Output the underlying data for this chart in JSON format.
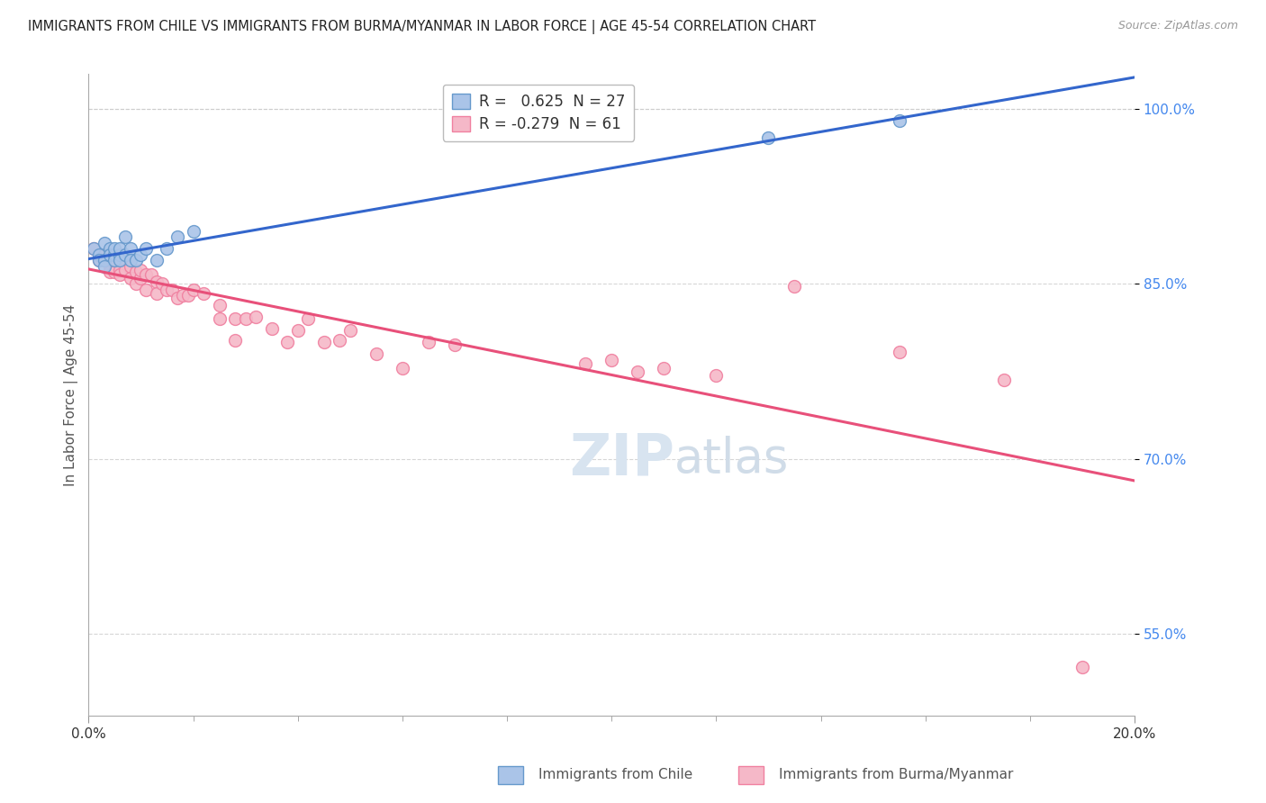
{
  "title": "IMMIGRANTS FROM CHILE VS IMMIGRANTS FROM BURMA/MYANMAR IN LABOR FORCE | AGE 45-54 CORRELATION CHART",
  "source": "Source: ZipAtlas.com",
  "ylabel": "In Labor Force | Age 45-54",
  "xlim": [
    0.0,
    0.2
  ],
  "ylim": [
    0.48,
    1.03
  ],
  "yticks": [
    0.55,
    0.7,
    0.85,
    1.0
  ],
  "ytick_labels": [
    "55.0%",
    "70.0%",
    "85.0%",
    "100.0%"
  ],
  "legend_chile_r": " 0.625",
  "legend_chile_n": "27",
  "legend_burma_r": "-0.279",
  "legend_burma_n": "61",
  "chile_color": "#aac4e8",
  "burma_color": "#f5b8c8",
  "chile_edge_color": "#6699cc",
  "burma_edge_color": "#f080a0",
  "chile_line_color": "#3366cc",
  "burma_line_color": "#e8507a",
  "background_color": "#ffffff",
  "grid_color": "#cccccc",
  "chile_points_x": [
    0.001,
    0.002,
    0.002,
    0.003,
    0.003,
    0.003,
    0.004,
    0.004,
    0.005,
    0.005,
    0.005,
    0.006,
    0.006,
    0.006,
    0.007,
    0.007,
    0.008,
    0.008,
    0.009,
    0.01,
    0.011,
    0.013,
    0.015,
    0.017,
    0.02,
    0.13,
    0.155
  ],
  "chile_points_y": [
    0.88,
    0.875,
    0.87,
    0.885,
    0.87,
    0.865,
    0.88,
    0.875,
    0.875,
    0.87,
    0.88,
    0.875,
    0.87,
    0.88,
    0.89,
    0.875,
    0.88,
    0.87,
    0.87,
    0.875,
    0.88,
    0.87,
    0.88,
    0.89,
    0.895,
    0.975,
    0.99
  ],
  "burma_points_x": [
    0.001,
    0.002,
    0.002,
    0.003,
    0.003,
    0.004,
    0.004,
    0.004,
    0.005,
    0.005,
    0.005,
    0.006,
    0.006,
    0.006,
    0.007,
    0.007,
    0.008,
    0.008,
    0.009,
    0.009,
    0.01,
    0.01,
    0.011,
    0.011,
    0.012,
    0.013,
    0.013,
    0.014,
    0.015,
    0.016,
    0.017,
    0.018,
    0.019,
    0.02,
    0.022,
    0.025,
    0.025,
    0.028,
    0.028,
    0.03,
    0.032,
    0.035,
    0.038,
    0.04,
    0.042,
    0.045,
    0.048,
    0.05,
    0.055,
    0.06,
    0.065,
    0.07,
    0.095,
    0.1,
    0.105,
    0.11,
    0.12,
    0.135,
    0.155,
    0.175,
    0.19
  ],
  "burma_points_y": [
    0.88,
    0.875,
    0.87,
    0.875,
    0.87,
    0.875,
    0.865,
    0.86,
    0.875,
    0.87,
    0.86,
    0.875,
    0.862,
    0.858,
    0.87,
    0.862,
    0.865,
    0.855,
    0.86,
    0.85,
    0.855,
    0.862,
    0.858,
    0.845,
    0.858,
    0.852,
    0.842,
    0.85,
    0.845,
    0.845,
    0.838,
    0.84,
    0.84,
    0.845,
    0.842,
    0.82,
    0.832,
    0.82,
    0.802,
    0.82,
    0.822,
    0.812,
    0.8,
    0.81,
    0.82,
    0.8,
    0.802,
    0.81,
    0.79,
    0.778,
    0.8,
    0.798,
    0.782,
    0.785,
    0.775,
    0.778,
    0.772,
    0.848,
    0.792,
    0.768,
    0.522
  ]
}
